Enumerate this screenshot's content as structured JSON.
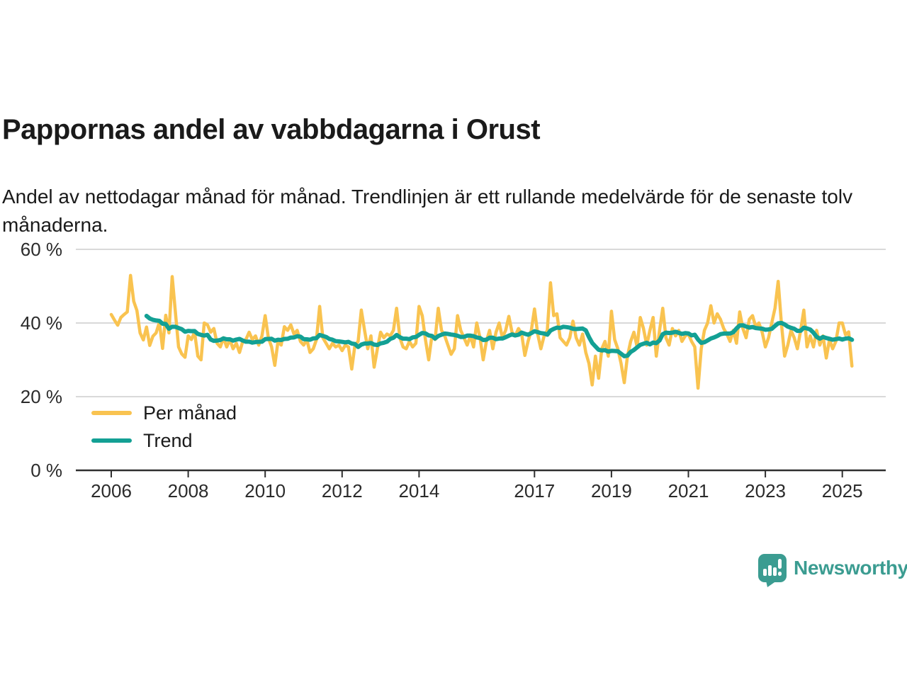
{
  "header": {
    "title": "Pappornas andel av vabbdagarna i Orust",
    "subtitle": "Andel av nettodagar månad för månad. Trendlinjen är ett rullande medelvärde för de senaste tolv månaderna."
  },
  "branding": {
    "name": "Newsworthy",
    "color": "#3b9c91",
    "icon": "speech-bubble-bar-chart-exclamation"
  },
  "chart_data": {
    "type": "line",
    "unit": "%",
    "grid": true,
    "legend_position": "inside-bottom-left",
    "x_axis": {
      "start": "2006-01",
      "end": "2025-04",
      "frequency": "monthly",
      "tick_years": [
        2006,
        2008,
        2010,
        2012,
        2014,
        2017,
        2019,
        2021,
        2023,
        2025
      ]
    },
    "y_axis": {
      "range": [
        0,
        62
      ],
      "ticks": [
        {
          "value": 0,
          "label": "0 %"
        },
        {
          "value": 20,
          "label": "20 %"
        },
        {
          "value": 40,
          "label": "40 %"
        },
        {
          "value": 60,
          "label": "60 %"
        }
      ]
    },
    "series": [
      {
        "name": "Per månad",
        "color": "#f9c350",
        "values": [
          42.3,
          40.8,
          39.4,
          41.5,
          42.3,
          43.0,
          52.9,
          45.9,
          43.4,
          37.3,
          35.4,
          38.9,
          33.9,
          36.4,
          37.3,
          40.2,
          33.1,
          42.1,
          37.3,
          52.6,
          43.0,
          33.5,
          31.6,
          30.7,
          36.5,
          35.5,
          37.5,
          31.0,
          30.0,
          40.0,
          39.5,
          37.5,
          38.5,
          34.5,
          33.5,
          36.0,
          33.5,
          35.5,
          33.0,
          34.5,
          32.0,
          35.0,
          35.5,
          37.5,
          35.5,
          36.5,
          34.0,
          36.5,
          42.0,
          36.0,
          33.5,
          28.5,
          35.0,
          34.0,
          39.0,
          38.0,
          39.5,
          37.0,
          38.0,
          35.0,
          34.0,
          35.5,
          32.0,
          33.0,
          35.5,
          44.5,
          36.0,
          34.5,
          33.0,
          34.5,
          33.5,
          34.0,
          32.5,
          34.0,
          33.5,
          27.5,
          34.0,
          35.0,
          43.5,
          38.0,
          33.0,
          36.5,
          28.0,
          33.0,
          37.5,
          36.0,
          37.0,
          36.5,
          38.0,
          44.0,
          36.0,
          33.5,
          33.0,
          35.0,
          33.5,
          34.5,
          44.5,
          42.0,
          35.5,
          30.0,
          36.5,
          35.5,
          44.0,
          38.0,
          36.5,
          34.0,
          31.5,
          33.0,
          42.0,
          38.0,
          36.0,
          34.0,
          36.5,
          33.5,
          40.0,
          36.0,
          30.0,
          35.0,
          38.0,
          33.0,
          37.5,
          40.0,
          36.0,
          38.0,
          41.8,
          37.5,
          36.5,
          38.5,
          37.0,
          31.2,
          35.0,
          38.0,
          43.8,
          37.0,
          33.0,
          36.5,
          38.0,
          50.9,
          42.0,
          42.5,
          36.0,
          35.0,
          34.0,
          36.0,
          40.5,
          36.0,
          34.0,
          37.0,
          32.0,
          29.0,
          23.2,
          31.0,
          25.0,
          33.0,
          35.0,
          31.0,
          43.2,
          35.5,
          33.0,
          29.0,
          23.8,
          31.0,
          35.0,
          37.5,
          33.5,
          41.5,
          38.5,
          34.0,
          38.0,
          41.5,
          31.0,
          38.0,
          44.0,
          36.0,
          34.0,
          38.5,
          36.5,
          38.0,
          35.0,
          36.5,
          37.0,
          35.0,
          33.5,
          22.3,
          33.0,
          38.0,
          40.0,
          44.7,
          40.0,
          42.5,
          41.0,
          38.5,
          37.0,
          35.0,
          38.0,
          34.5,
          43.0,
          38.5,
          36.0,
          41.0,
          42.0,
          39.0,
          40.0,
          37.5,
          33.5,
          36.0,
          40.0,
          44.0,
          51.3,
          40.0,
          31.0,
          34.0,
          38.0,
          36.0,
          33.0,
          38.0,
          43.5,
          33.5,
          36.5,
          33.5,
          38.0,
          34.0,
          36.5,
          30.5,
          35.5,
          33.0,
          35.0,
          40.0,
          40.0,
          36.8,
          37.6,
          28.3
        ]
      },
      {
        "name": "Trend",
        "color": "#13a094",
        "derived": "rolling_mean_of_last_12_months"
      }
    ]
  }
}
